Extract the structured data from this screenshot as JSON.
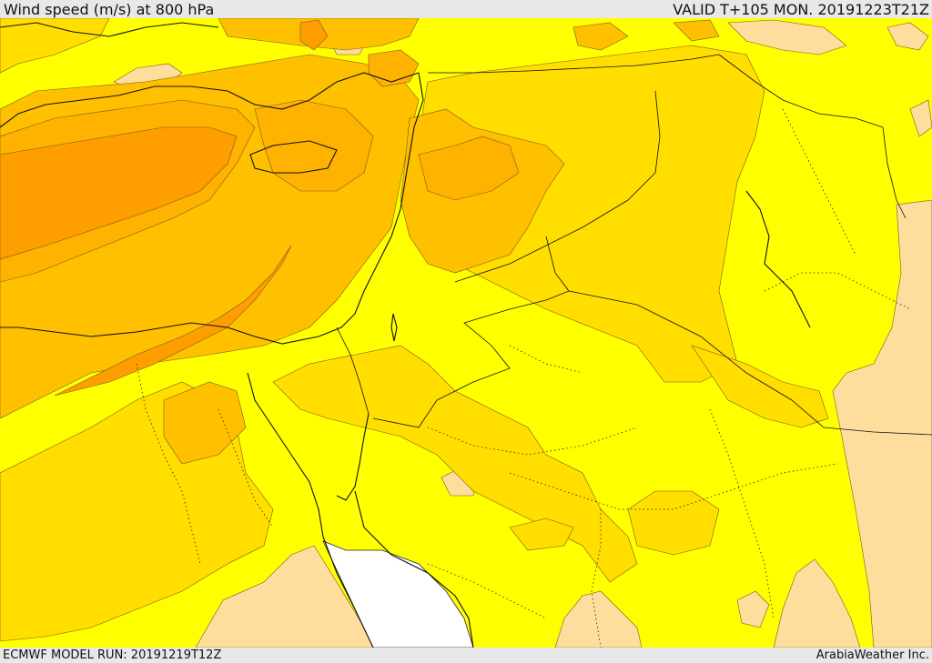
{
  "header": {
    "title": "Wind speed (m/s) at 800 hPa",
    "valid_time": "VALID T+105 MON. 20191223T21Z"
  },
  "footer": {
    "model_run": "ECMWF MODEL RUN: 20191219T12Z",
    "credit": "ArabiaWeather Inc."
  },
  "map": {
    "field": "wind speed",
    "level": "800 hPa",
    "units": "m/s",
    "colors": {
      "lightest": "#ffde9d",
      "yellow": "#ffff00",
      "gold": "#ffde00",
      "amber": "#ffc000",
      "orange": "#ffb200",
      "deep_orange": "#ff9e00",
      "water_gap": "#ffffff"
    }
  }
}
